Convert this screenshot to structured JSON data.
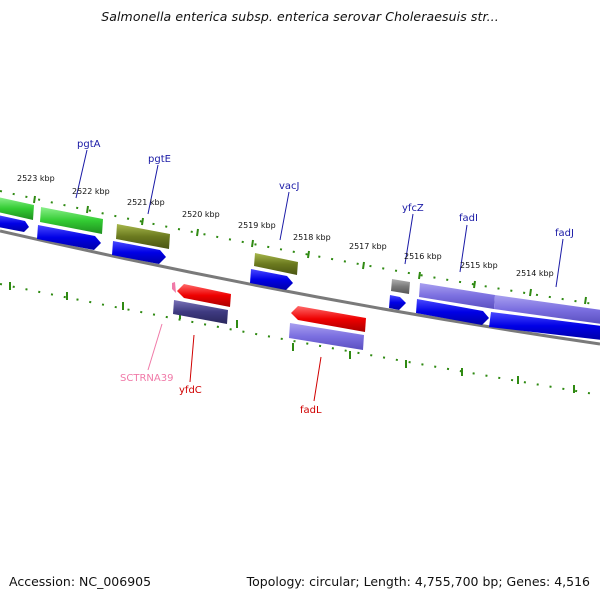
{
  "title": "Salmonella enterica subsp. enterica serovar Choleraesuis str...",
  "footer": {
    "accession": "Accession: NC_006905",
    "summary": "Topology: circular; Length: 4,755,700 bp; Genes: 4,516"
  },
  "colors": {
    "backbone": "#7a7a7a",
    "tick": "#2f8a12",
    "forward_label": "#1a1aa6",
    "reverse_cds": "#d00000",
    "trna": "#f07aa8"
  },
  "kbp_labels": [
    "2523 kbp",
    "2522 kbp",
    "2521 kbp",
    "2520 kbp",
    "2519 kbp",
    "2518 kbp",
    "2517 kbp",
    "2516 kbp",
    "2515 kbp",
    "2514 kbp"
  ],
  "gene_labels": [
    {
      "text": "pgtA",
      "color": "#1a1aa6"
    },
    {
      "text": "pgtE",
      "color": "#1a1aa6"
    },
    {
      "text": "vacJ",
      "color": "#1a1aa6"
    },
    {
      "text": "yfcZ",
      "color": "#1a1aa6"
    },
    {
      "text": "fadI",
      "color": "#1a1aa6"
    },
    {
      "text": "fadJ",
      "color": "#1a1aa6"
    },
    {
      "text": "SCTRNA39",
      "color": "#f07aa8"
    },
    {
      "text": "yfdC",
      "color": "#d00000"
    },
    {
      "text": "fadL",
      "color": "#d00000"
    }
  ]
}
